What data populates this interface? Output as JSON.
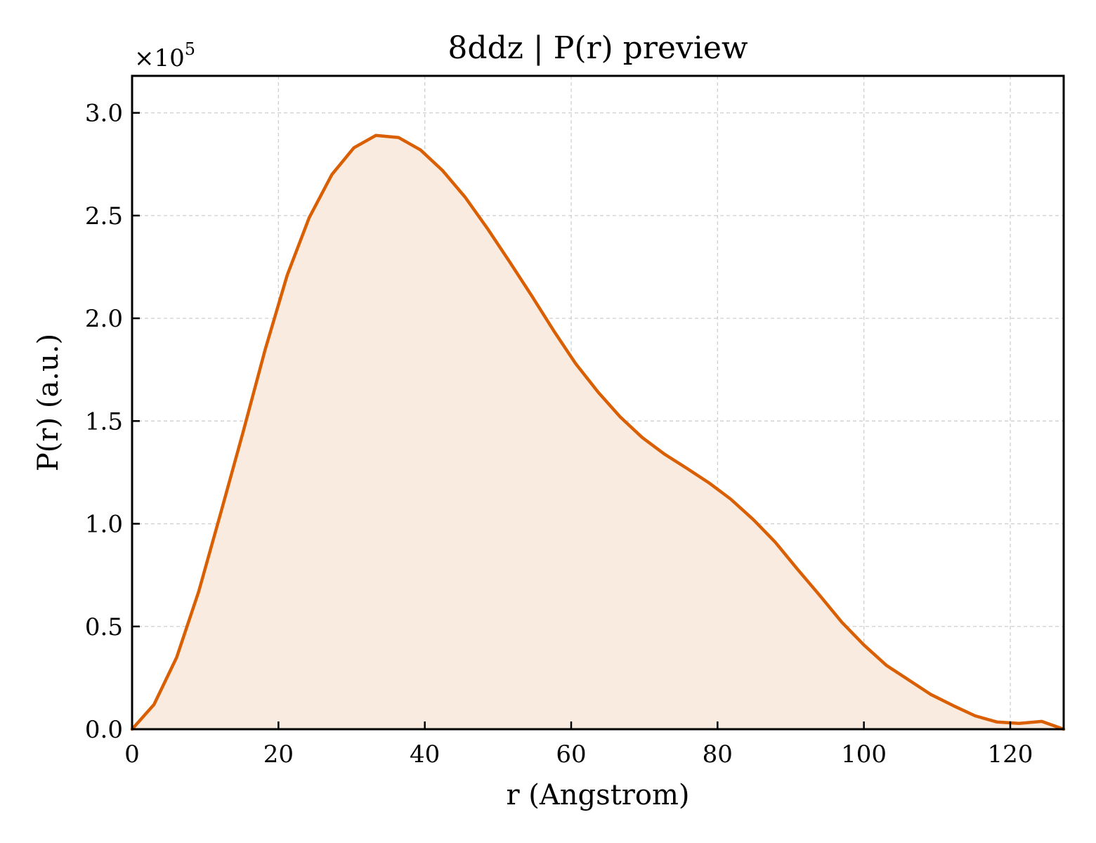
{
  "chart_data": {
    "type": "area",
    "title": "8ddz | P(r) preview",
    "xlabel": "r (Angstrom)",
    "ylabel": "P(r) (a.u.)",
    "y_offset_label": {
      "base": "×10",
      "exponent": "5"
    },
    "xlim": [
      0,
      127.3
    ],
    "ylim": [
      0,
      3.18
    ],
    "xticks": [
      0,
      20,
      40,
      60,
      80,
      100,
      120
    ],
    "xtick_labels": [
      "0",
      "20",
      "40",
      "60",
      "80",
      "100",
      "120"
    ],
    "yticks": [
      0.0,
      0.5,
      1.0,
      1.5,
      2.0,
      2.5,
      3.0
    ],
    "ytick_labels": [
      "0.0",
      "0.5",
      "1.0",
      "1.5",
      "2.0",
      "2.5",
      "3.0"
    ],
    "grid": true,
    "line_color": "#d95f02",
    "fill_color": "#f9ebe0",
    "series": [
      {
        "x": [
          0,
          3.0,
          6.1,
          9.1,
          12.1,
          15.2,
          18.2,
          21.2,
          24.2,
          27.3,
          30.3,
          33.3,
          36.4,
          39.4,
          42.4,
          45.5,
          48.5,
          51.5,
          54.6,
          57.6,
          60.6,
          63.7,
          66.7,
          69.7,
          72.7,
          75.8,
          78.8,
          81.8,
          84.9,
          87.9,
          90.9,
          94.0,
          97.0,
          100.0,
          103.1,
          106.1,
          109.1,
          112.2,
          115.2,
          118.2,
          121.2,
          124.3,
          127.3
        ],
        "y": [
          0,
          0.12,
          0.35,
          0.67,
          1.05,
          1.45,
          1.85,
          2.21,
          2.49,
          2.7,
          2.83,
          2.89,
          2.88,
          2.82,
          2.72,
          2.59,
          2.44,
          2.28,
          2.11,
          1.94,
          1.78,
          1.64,
          1.52,
          1.42,
          1.34,
          1.27,
          1.2,
          1.12,
          1.02,
          0.91,
          0.78,
          0.65,
          0.52,
          0.41,
          0.31,
          0.24,
          0.17,
          0.115,
          0.065,
          0.035,
          0.028,
          0.038,
          0
        ]
      }
    ]
  }
}
